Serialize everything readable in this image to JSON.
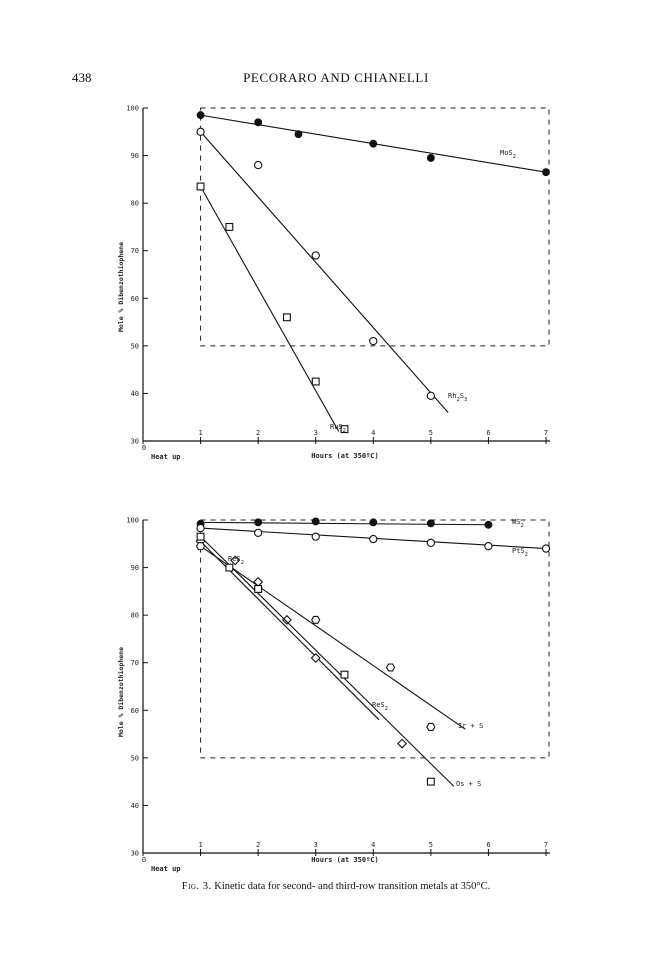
{
  "header": {
    "page_number": "438",
    "running_title": "PECORARO AND CHIANELLI"
  },
  "caption": {
    "label": "Fig. 3.",
    "text": "Kinetic data for second- and third-row transition metals at 350°C."
  },
  "chart_data": [
    {
      "type": "scatter",
      "title": "",
      "xlabel": "Hours (at 350ºC)",
      "ylabel": "Mole % Dibenzothiophene",
      "x_zero_label": "Heat up",
      "xlim": [
        0,
        7
      ],
      "ylim": [
        30,
        100
      ],
      "x_ticks": [
        "0",
        "1",
        "2",
        "3",
        "4",
        "5",
        "6",
        "7"
      ],
      "y_ticks": [
        "30",
        "40",
        "50",
        "60",
        "70",
        "80",
        "90",
        "100"
      ],
      "grid": false,
      "dashed_box": {
        "x": [
          1,
          7
        ],
        "y": [
          50,
          100
        ]
      },
      "series": [
        {
          "name": "MoS2",
          "marker": "filled-circle",
          "x": [
            1,
            2,
            2.7,
            4,
            5,
            7
          ],
          "y": [
            98.5,
            97,
            94.5,
            92.5,
            89.5,
            86.5
          ],
          "fit": [
            [
              1,
              98.5
            ],
            [
              7,
              86.5
            ]
          ]
        },
        {
          "name": "Rh2S3",
          "marker": "open-circle",
          "x": [
            1,
            2,
            3,
            4,
            5
          ],
          "y": [
            95,
            88,
            69,
            51,
            39.5
          ],
          "fit": [
            [
              1,
              95
            ],
            [
              5.3,
              36
            ]
          ]
        },
        {
          "name": "RuS2",
          "marker": "open-square",
          "x": [
            1,
            1.5,
            2.5,
            3,
            3.5
          ],
          "y": [
            83.5,
            75,
            56,
            42.5,
            32.5
          ],
          "fit": [
            [
              1,
              83.5
            ],
            [
              3.4,
              32
            ]
          ]
        }
      ]
    },
    {
      "type": "scatter",
      "title": "",
      "xlabel": "Hours (at 350ºC)",
      "ylabel": "Mole % Dibenzothiophene",
      "x_zero_label": "Heat up",
      "xlim": [
        0,
        7
      ],
      "ylim": [
        30,
        100
      ],
      "x_ticks": [
        "0",
        "1",
        "2",
        "3",
        "4",
        "5",
        "6",
        "7"
      ],
      "y_ticks": [
        "30",
        "40",
        "50",
        "60",
        "70",
        "80",
        "90",
        "100"
      ],
      "grid": false,
      "dashed_box": {
        "x": [
          1,
          7
        ],
        "y": [
          50,
          100
        ]
      },
      "series": [
        {
          "name": "WS2",
          "marker": "filled-circle",
          "x": [
            1,
            2,
            3,
            4,
            5,
            6
          ],
          "y": [
            99.2,
            99.5,
            99.7,
            99.5,
            99.3,
            99
          ],
          "fit": [
            [
              1,
              99.5
            ],
            [
              6,
              99
            ]
          ]
        },
        {
          "name": "PtS2",
          "marker": "open-circle",
          "x": [
            1,
            2,
            3,
            4,
            5,
            6,
            7
          ],
          "y": [
            98.3,
            97.3,
            96.5,
            96,
            95.2,
            94.5,
            94
          ],
          "fit": [
            [
              1,
              98.3
            ],
            [
              7,
              94
            ]
          ]
        },
        {
          "name": "ReS2",
          "marker": "open-diamond",
          "x": [
            1,
            1.6,
            2,
            2.5,
            3,
            4.5
          ],
          "y": [
            95.5,
            91.5,
            87,
            79,
            71,
            53
          ],
          "fit": [
            [
              1,
              95.5
            ],
            [
              4.1,
              58
            ]
          ]
        },
        {
          "name": "Ir + S",
          "marker": "open-hexagon",
          "x": [
            1,
            2,
            3,
            4.3,
            5
          ],
          "y": [
            94.5,
            85.5,
            79,
            69,
            56.5
          ],
          "fit": [
            [
              1,
              94.5
            ],
            [
              5.6,
              56
            ]
          ]
        },
        {
          "name": "Os + S",
          "marker": "open-square",
          "x": [
            1,
            1.5,
            2,
            3.5,
            5
          ],
          "y": [
            96.5,
            90,
            85.5,
            67.5,
            45
          ],
          "fit": [
            [
              1,
              96.5
            ],
            [
              5.4,
              44
            ]
          ]
        }
      ]
    }
  ]
}
